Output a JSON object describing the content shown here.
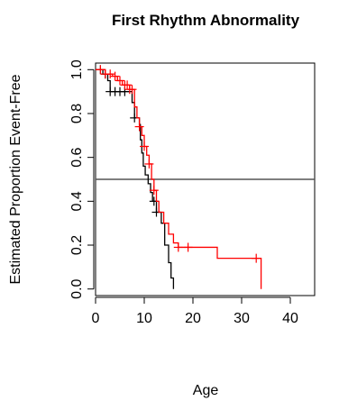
{
  "chart_data": {
    "type": "line",
    "title": "First Rhythm Abnormality",
    "xlabel": "Age",
    "ylabel": "Estimated Proportion Event-Free",
    "xlim": [
      0,
      45
    ],
    "ylim": [
      -0.03,
      1.03
    ],
    "x_ticks": [
      "0",
      "10",
      "20",
      "30",
      "40"
    ],
    "x_tick_values": [
      0,
      10,
      20,
      30,
      40
    ],
    "y_ticks": [
      "0.0",
      "0.2",
      "0.4",
      "0.6",
      "0.8",
      "1.0"
    ],
    "y_tick_values": [
      0,
      0.2,
      0.4,
      0.6,
      0.8,
      1.0
    ],
    "reference_line_y": 0.5,
    "grid": false,
    "series": [
      {
        "color": "#000000",
        "steps": [
          [
            0,
            1.0
          ],
          [
            1.5,
            0.98
          ],
          [
            2.5,
            0.95
          ],
          [
            3,
            0.9
          ],
          [
            7.5,
            0.85
          ],
          [
            8,
            0.78
          ],
          [
            9,
            0.75
          ],
          [
            9.2,
            0.68
          ],
          [
            9.5,
            0.62
          ],
          [
            9.8,
            0.56
          ],
          [
            10.2,
            0.52
          ],
          [
            10.8,
            0.48
          ],
          [
            11.3,
            0.44
          ],
          [
            11.7,
            0.4
          ],
          [
            12.5,
            0.35
          ],
          [
            13.5,
            0.3
          ],
          [
            14.2,
            0.2
          ],
          [
            15,
            0.12
          ],
          [
            15.5,
            0.05
          ],
          [
            16,
            0.0
          ]
        ],
        "censor_times": [
          1,
          2,
          3,
          4,
          5,
          6,
          8,
          12,
          12.5
        ],
        "end_x": 16
      },
      {
        "color": "#ff0000",
        "steps": [
          [
            0,
            1.0
          ],
          [
            2,
            0.98
          ],
          [
            3.5,
            0.97
          ],
          [
            4.5,
            0.95
          ],
          [
            5.5,
            0.93
          ],
          [
            7,
            0.91
          ],
          [
            8,
            0.83
          ],
          [
            8.5,
            0.78
          ],
          [
            9,
            0.74
          ],
          [
            9.5,
            0.7
          ],
          [
            10,
            0.65
          ],
          [
            10.5,
            0.61
          ],
          [
            11,
            0.57
          ],
          [
            11.5,
            0.5
          ],
          [
            12,
            0.45
          ],
          [
            12.5,
            0.4
          ],
          [
            13,
            0.35
          ],
          [
            14,
            0.3
          ],
          [
            15,
            0.25
          ],
          [
            16,
            0.21
          ],
          [
            17,
            0.19
          ],
          [
            25,
            0.14
          ],
          [
            34,
            0.0
          ]
        ],
        "censor_times": [
          1,
          2,
          3,
          4,
          5,
          6,
          6.5,
          7,
          7.5,
          9,
          10,
          11,
          12,
          17,
          19,
          33
        ],
        "end_x": 34
      }
    ]
  }
}
